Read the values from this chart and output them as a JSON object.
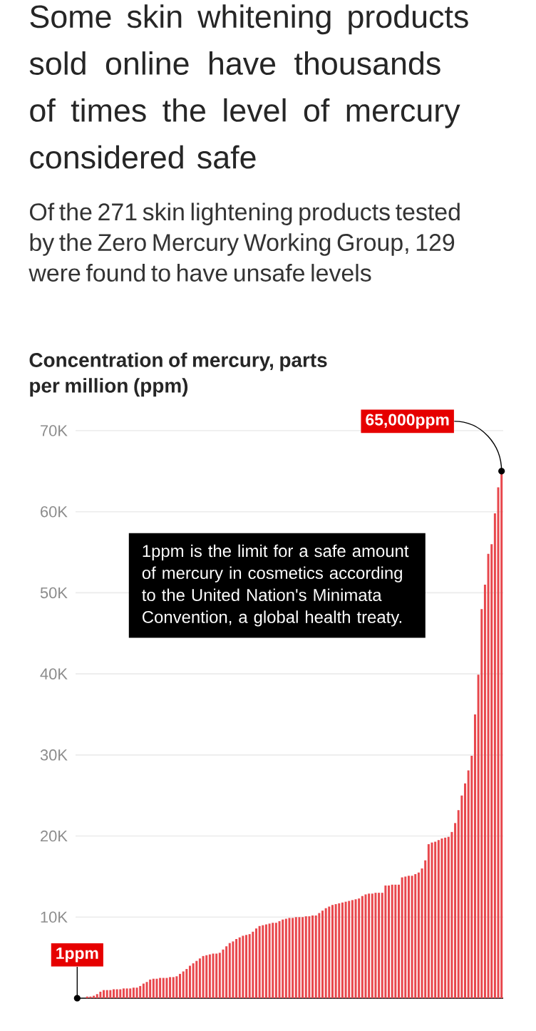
{
  "chart_data": {
    "type": "bar",
    "title": "Some skin whitening products sold online have thousands of times the level of mercury considered safe",
    "subtitle": "Of the 271 skin lightening products tested by the Zero Mercury Working Group, 129 were found to have unsafe levels",
    "ylabel": "Concentration of mercury, parts per million (ppm)",
    "categories": [
      null,
      null,
      null,
      null,
      null,
      null,
      null,
      null,
      null,
      null,
      null,
      null,
      null,
      null,
      null,
      null,
      null,
      null,
      null,
      null,
      null,
      null,
      null,
      null,
      null,
      null,
      null,
      null,
      null,
      null,
      null,
      null,
      null,
      null,
      null,
      null,
      null,
      null,
      null,
      null,
      null,
      null,
      null,
      null,
      null,
      null,
      null,
      null,
      null,
      null,
      null,
      null,
      null,
      null,
      null,
      null,
      null,
      null,
      null,
      null,
      null,
      null,
      null,
      null,
      null,
      null,
      null,
      null,
      null,
      null,
      null,
      null,
      null,
      null,
      null,
      null,
      null,
      null,
      null,
      null,
      null,
      null,
      null,
      null,
      null,
      null,
      null,
      null,
      null,
      null,
      null,
      null,
      null,
      null,
      null,
      null,
      null,
      null,
      null,
      null,
      null,
      null,
      null,
      null,
      null,
      null,
      null,
      null,
      null,
      null,
      null,
      null,
      null,
      null,
      null,
      null,
      null,
      null,
      null,
      null,
      null,
      null,
      null,
      null,
      null,
      null,
      null,
      null,
      null
    ],
    "values": [
      1,
      null,
      null,
      200,
      200,
      300,
      500,
      800,
      1000,
      1000,
      1000,
      1100,
      1100,
      1100,
      1200,
      1200,
      1200,
      1300,
      1300,
      1500,
      1800,
      2000,
      2300,
      2400,
      2400,
      2500,
      2500,
      2500,
      2600,
      2600,
      2700,
      3000,
      3300,
      3600,
      4000,
      4300,
      4600,
      4900,
      5200,
      5300,
      5400,
      5500,
      5500,
      5600,
      6000,
      6400,
      6800,
      7000,
      7300,
      7500,
      7700,
      7800,
      7900,
      8200,
      8600,
      8900,
      9000,
      9100,
      9200,
      9300,
      9300,
      9500,
      9700,
      9800,
      9900,
      9900,
      10000,
      10000,
      10000,
      10100,
      10100,
      10200,
      10200,
      10500,
      10800,
      11100,
      11300,
      11500,
      11600,
      11700,
      11800,
      11900,
      12000,
      12100,
      12200,
      12300,
      12600,
      12800,
      12900,
      12900,
      13000,
      13000,
      13000,
      13900,
      13900,
      14000,
      14000,
      14000,
      14900,
      15000,
      15100,
      15100,
      15300,
      15500,
      16000,
      17000,
      19000,
      19200,
      19300,
      19500,
      19700,
      19800,
      19900,
      20500,
      21600,
      23200,
      25000,
      26500,
      28100,
      29900,
      35000,
      39900,
      48000,
      51000,
      54800,
      56000,
      59800,
      63000,
      65000
    ],
    "color": "#e8474c",
    "ylim": [
      0,
      70000
    ],
    "yticks": [
      {
        "value": 10000,
        "label": "10K"
      },
      {
        "value": 20000,
        "label": "20K"
      },
      {
        "value": 30000,
        "label": "30K"
      },
      {
        "value": 40000,
        "label": "40K"
      },
      {
        "value": 50000,
        "label": "50K"
      },
      {
        "value": 60000,
        "label": "60K"
      },
      {
        "value": 70000,
        "label": "70K"
      }
    ],
    "grid": "y",
    "annotations": [
      "65,000ppm",
      {
        "text": "1ppm",
        "y": 1
      },
      "1ppm is the limit for a safe amount of mercury in cosmetics according to the United Nation's Minimata Convention, a global health treaty."
    ]
  }
}
